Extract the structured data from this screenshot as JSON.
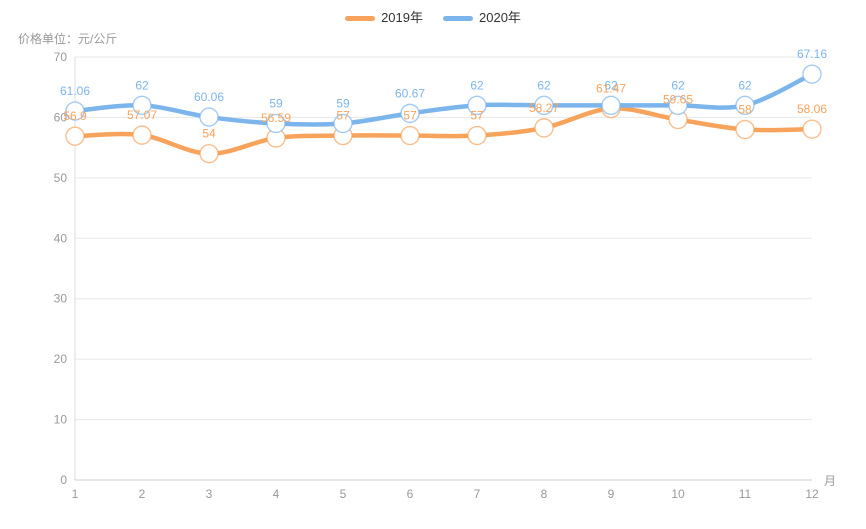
{
  "title": "价格单位：元/公斤",
  "legend": {
    "items": [
      {
        "label": "2019年",
        "color": "#f7a35c"
      },
      {
        "label": "2020年",
        "color": "#7cb5ec"
      }
    ]
  },
  "chart_data": {
    "type": "line",
    "smooth": true,
    "x": [
      "1",
      "2",
      "3",
      "4",
      "5",
      "6",
      "7",
      "8",
      "9",
      "10",
      "11",
      "12"
    ],
    "x_unit": "月",
    "ylabel": "价格单位：元/公斤",
    "ylim": [
      0,
      70
    ],
    "y_ticks": [
      0,
      10,
      20,
      30,
      40,
      50,
      60,
      70
    ],
    "grid": true,
    "legend_position": "top-center",
    "point_labels": true,
    "series": [
      {
        "name": "2019年",
        "color": "#f7a35c",
        "values": [
          56.9,
          57.07,
          54,
          56.59,
          57,
          57,
          57,
          58.27,
          61.47,
          59.65,
          58,
          58.06
        ]
      },
      {
        "name": "2020年",
        "color": "#7cb5ec",
        "values": [
          61.06,
          62,
          60.06,
          59,
          59,
          60.67,
          62,
          62,
          62,
          62,
          62,
          67.16
        ]
      }
    ],
    "grid_color": "#e8e8e8",
    "axis_color": "#cfcfcf",
    "tick_label_color": "#999999"
  }
}
